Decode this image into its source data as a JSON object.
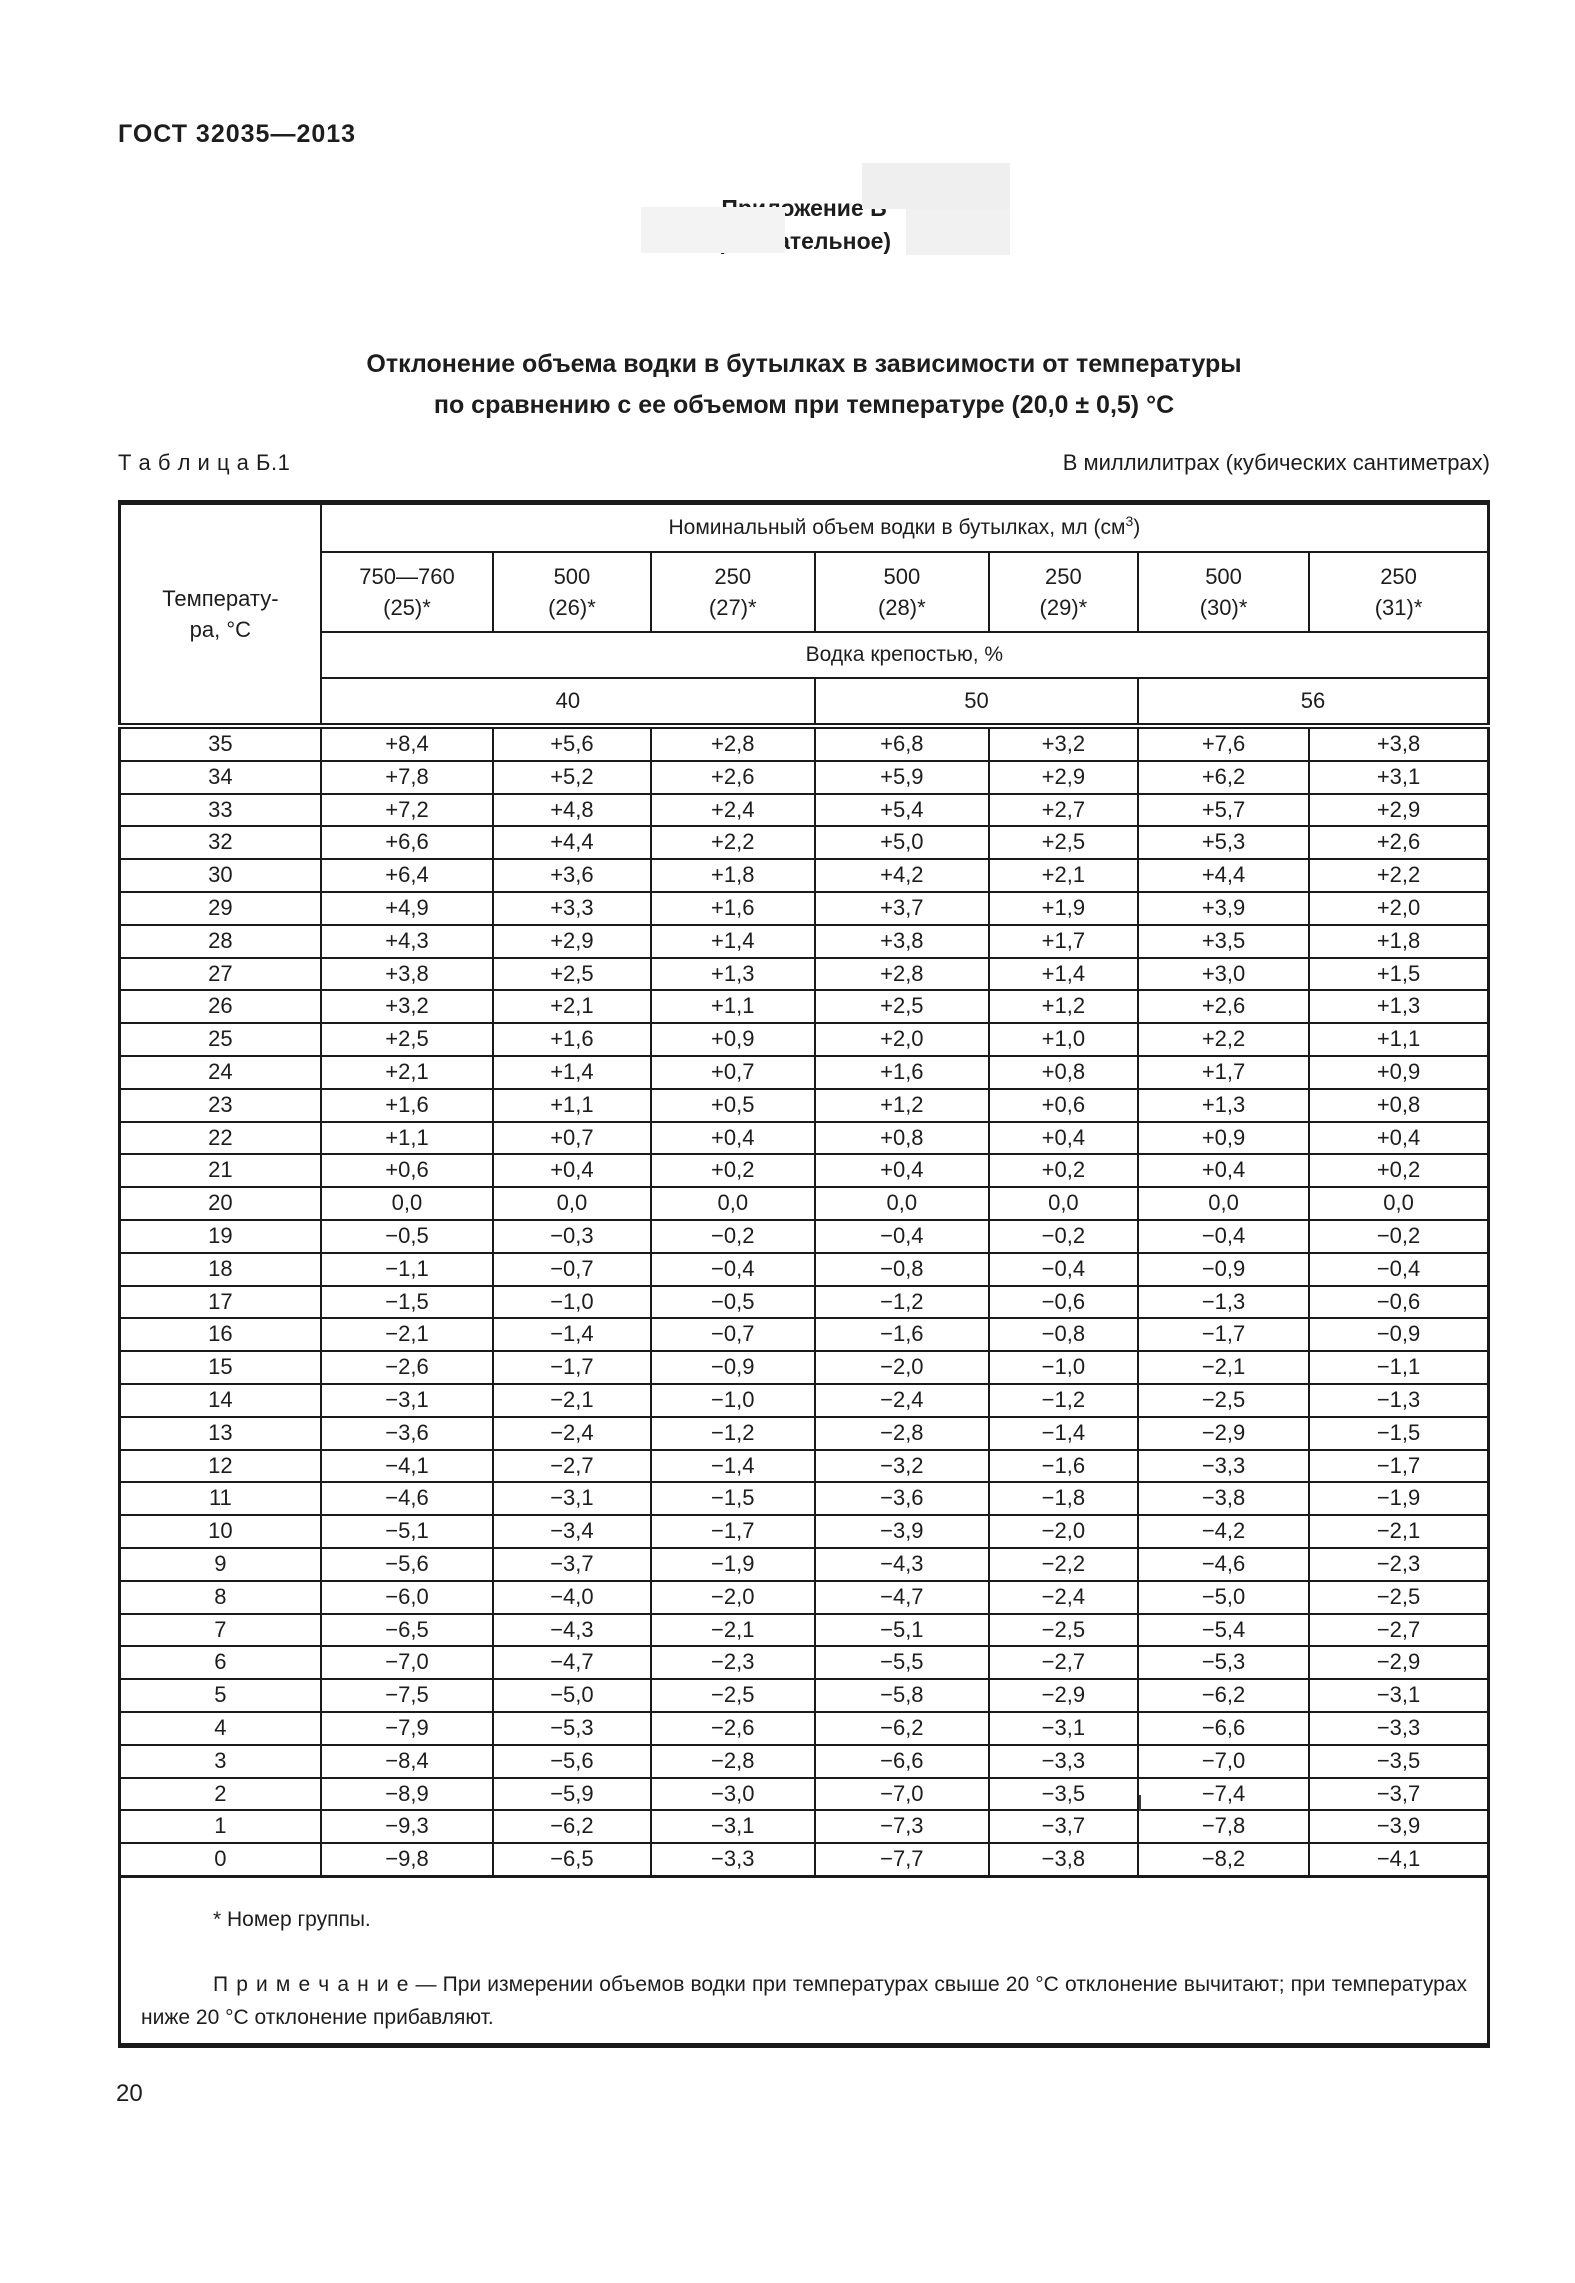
{
  "header": {
    "doc_code": "ГОСТ 32035—2013",
    "appendix_title": "Приложение Б",
    "appendix_kind": "(обязательное)",
    "title_line1": "Отклонение объема водки в бутылках в зависимости от температуры",
    "title_line2": "по сравнению с ее объемом при температуре (20,0 ± 0,5) °С"
  },
  "table": {
    "label": "Т а б л и ц а  Б.1",
    "units_note": "В миллилитрах (кубических сантиметрах)",
    "corner_line1": "Температу-",
    "corner_line2": "ра, °С",
    "volume_header_prefix": "Номинальный объем водки в бутылках, мл (см",
    "volume_header_sup": "3",
    "volume_header_suffix": ")",
    "volume_columns": [
      {
        "size": "750—760",
        "group": "(25)*"
      },
      {
        "size": "500",
        "group": "(26)*"
      },
      {
        "size": "250",
        "group": "(27)*"
      },
      {
        "size": "500",
        "group": "(28)*"
      },
      {
        "size": "250",
        "group": "(29)*"
      },
      {
        "size": "500",
        "group": "(30)*"
      },
      {
        "size": "250",
        "group": "(31)*"
      }
    ],
    "strength_header": "Водка крепостью, %",
    "strength_groups": [
      {
        "value": "40",
        "span": 3
      },
      {
        "value": "50",
        "span": 2
      },
      {
        "value": "56",
        "span": 2
      }
    ],
    "rows": [
      {
        "t": "35",
        "values": [
          "+8,4",
          "+5,6",
          "+2,8",
          "+6,8",
          "+3,2",
          "+7,6",
          "+3,8"
        ]
      },
      {
        "t": "34",
        "values": [
          "+7,8",
          "+5,2",
          "+2,6",
          "+5,9",
          "+2,9",
          "+6,2",
          "+3,1"
        ]
      },
      {
        "t": "33",
        "values": [
          "+7,2",
          "+4,8",
          "+2,4",
          "+5,4",
          "+2,7",
          "+5,7",
          "+2,9"
        ]
      },
      {
        "t": "32",
        "values": [
          "+6,6",
          "+4,4",
          "+2,2",
          "+5,0",
          "+2,5",
          "+5,3",
          "+2,6"
        ]
      },
      {
        "t": "30",
        "values": [
          "+6,4",
          "+3,6",
          "+1,8",
          "+4,2",
          "+2,1",
          "+4,4",
          "+2,2"
        ]
      },
      {
        "t": "29",
        "values": [
          "+4,9",
          "+3,3",
          "+1,6",
          "+3,7",
          "+1,9",
          "+3,9",
          "+2,0"
        ]
      },
      {
        "t": "28",
        "values": [
          "+4,3",
          "+2,9",
          "+1,4",
          "+3,8",
          "+1,7",
          "+3,5",
          "+1,8"
        ]
      },
      {
        "t": "27",
        "values": [
          "+3,8",
          "+2,5",
          "+1,3",
          "+2,8",
          "+1,4",
          "+3,0",
          "+1,5"
        ]
      },
      {
        "t": "26",
        "values": [
          "+3,2",
          "+2,1",
          "+1,1",
          "+2,5",
          "+1,2",
          "+2,6",
          "+1,3"
        ]
      },
      {
        "t": "25",
        "values": [
          "+2,5",
          "+1,6",
          "+0,9",
          "+2,0",
          "+1,0",
          "+2,2",
          "+1,1"
        ]
      },
      {
        "t": "24",
        "values": [
          "+2,1",
          "+1,4",
          "+0,7",
          "+1,6",
          "+0,8",
          "+1,7",
          "+0,9"
        ]
      },
      {
        "t": "23",
        "values": [
          "+1,6",
          "+1,1",
          "+0,5",
          "+1,2",
          "+0,6",
          "+1,3",
          "+0,8"
        ]
      },
      {
        "t": "22",
        "values": [
          "+1,1",
          "+0,7",
          "+0,4",
          "+0,8",
          "+0,4",
          "+0,9",
          "+0,4"
        ]
      },
      {
        "t": "21",
        "values": [
          "+0,6",
          "+0,4",
          "+0,2",
          "+0,4",
          "+0,2",
          "+0,4",
          "+0,2"
        ]
      },
      {
        "t": "20",
        "values": [
          "0,0",
          "0,0",
          "0,0",
          "0,0",
          "0,0",
          "0,0",
          "0,0"
        ]
      },
      {
        "t": "19",
        "values": [
          "−0,5",
          "−0,3",
          "−0,2",
          "−0,4",
          "−0,2",
          "−0,4",
          "−0,2"
        ]
      },
      {
        "t": "18",
        "values": [
          "−1,1",
          "−0,7",
          "−0,4",
          "−0,8",
          "−0,4",
          "−0,9",
          "−0,4"
        ]
      },
      {
        "t": "17",
        "values": [
          "−1,5",
          "−1,0",
          "−0,5",
          "−1,2",
          "−0,6",
          "−1,3",
          "−0,6"
        ]
      },
      {
        "t": "16",
        "values": [
          "−2,1",
          "−1,4",
          "−0,7",
          "−1,6",
          "−0,8",
          "−1,7",
          "−0,9"
        ]
      },
      {
        "t": "15",
        "values": [
          "−2,6",
          "−1,7",
          "−0,9",
          "−2,0",
          "−1,0",
          "−2,1",
          "−1,1"
        ]
      },
      {
        "t": "14",
        "values": [
          "−3,1",
          "−2,1",
          "−1,0",
          "−2,4",
          "−1,2",
          "−2,5",
          "−1,3"
        ]
      },
      {
        "t": "13",
        "values": [
          "−3,6",
          "−2,4",
          "−1,2",
          "−2,8",
          "−1,4",
          "−2,9",
          "−1,5"
        ]
      },
      {
        "t": "12",
        "values": [
          "−4,1",
          "−2,7",
          "−1,4",
          "−3,2",
          "−1,6",
          "−3,3",
          "−1,7"
        ]
      },
      {
        "t": "11",
        "values": [
          "−4,6",
          "−3,1",
          "−1,5",
          "−3,6",
          "−1,8",
          "−3,8",
          "−1,9"
        ]
      },
      {
        "t": "10",
        "values": [
          "−5,1",
          "−3,4",
          "−1,7",
          "−3,9",
          "−2,0",
          "−4,2",
          "−2,1"
        ]
      },
      {
        "t": "9",
        "values": [
          "−5,6",
          "−3,7",
          "−1,9",
          "−4,3",
          "−2,2",
          "−4,6",
          "−2,3"
        ]
      },
      {
        "t": "8",
        "values": [
          "−6,0",
          "−4,0",
          "−2,0",
          "−4,7",
          "−2,4",
          "−5,0",
          "−2,5"
        ]
      },
      {
        "t": "7",
        "values": [
          "−6,5",
          "−4,3",
          "−2,1",
          "−5,1",
          "−2,5",
          "−5,4",
          "−2,7"
        ]
      },
      {
        "t": "6",
        "values": [
          "−7,0",
          "−4,7",
          "−2,3",
          "−5,5",
          "−2,7",
          "−5,3",
          "−2,9"
        ]
      },
      {
        "t": "5",
        "values": [
          "−7,5",
          "−5,0",
          "−2,5",
          "−5,8",
          "−2,9",
          "−6,2",
          "−3,1"
        ]
      },
      {
        "t": "4",
        "values": [
          "−7,9",
          "−5,3",
          "−2,6",
          "−6,2",
          "−3,1",
          "−6,6",
          "−3,3"
        ]
      },
      {
        "t": "3",
        "values": [
          "−8,4",
          "−5,6",
          "−2,8",
          "−6,6",
          "−3,3",
          "−7,0",
          "−3,5"
        ]
      },
      {
        "t": "2",
        "values": [
          "−8,9",
          "−5,9",
          "−3,0",
          "−7,0",
          "−3,5",
          "−7,4",
          "−3,7"
        ]
      },
      {
        "t": "1",
        "values": [
          "−9,3",
          "−6,2",
          "−3,1",
          "−7,3",
          "−3,7",
          "−7,8",
          "−3,9"
        ]
      },
      {
        "t": "0",
        "values": [
          "−9,8",
          "−6,5",
          "−3,3",
          "−7,7",
          "−3,8",
          "−8,2",
          "−4,1"
        ]
      }
    ],
    "footnote": "* Номер группы.",
    "note_label": "П р и м е ч а н и е",
    "note_text": " — При измерении объемов водки при температурах свыше 20 °С отклонение вычитают; при температурах ниже 20 °С отклонение прибавляют."
  },
  "footer": {
    "page_number": "20"
  },
  "style": {
    "border_color": "#1a1a1a",
    "text_color": "#1d1d1d",
    "background": "#ffffff"
  }
}
